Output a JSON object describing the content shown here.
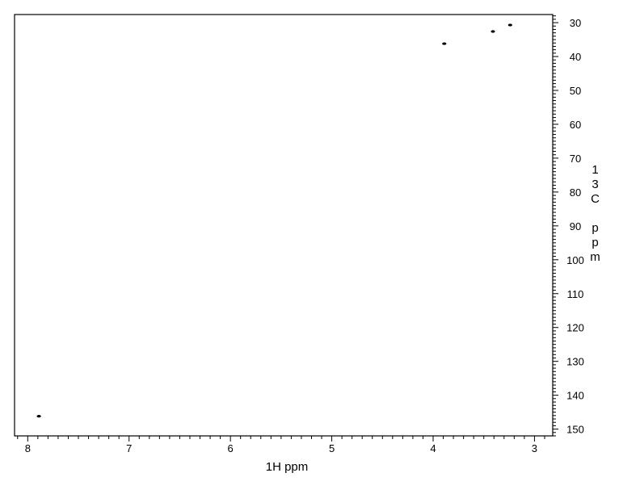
{
  "chart_data": {
    "type": "scatter",
    "title": "",
    "xlabel": "1H ppm",
    "ylabel": "13C ppm",
    "ylabel_chars": [
      "1",
      "3",
      "C",
      "",
      "p",
      "p",
      "m"
    ],
    "xlim": [
      8.13,
      2.82
    ],
    "ylim": [
      27.6,
      152.0
    ],
    "x_reversed": true,
    "y_reversed": true,
    "x_ticks": [
      8,
      7,
      6,
      5,
      4,
      3
    ],
    "y_ticks": [
      30,
      40,
      50,
      60,
      70,
      80,
      90,
      100,
      110,
      120,
      130,
      140,
      150
    ],
    "x_minor_step": 0.1,
    "y_minor_step": 1,
    "grid": false,
    "points": [
      {
        "x": 7.89,
        "y": 146.2
      },
      {
        "x": 3.89,
        "y": 36.2
      },
      {
        "x": 3.41,
        "y": 32.6
      },
      {
        "x": 3.24,
        "y": 30.7
      }
    ],
    "color": "#000000"
  }
}
